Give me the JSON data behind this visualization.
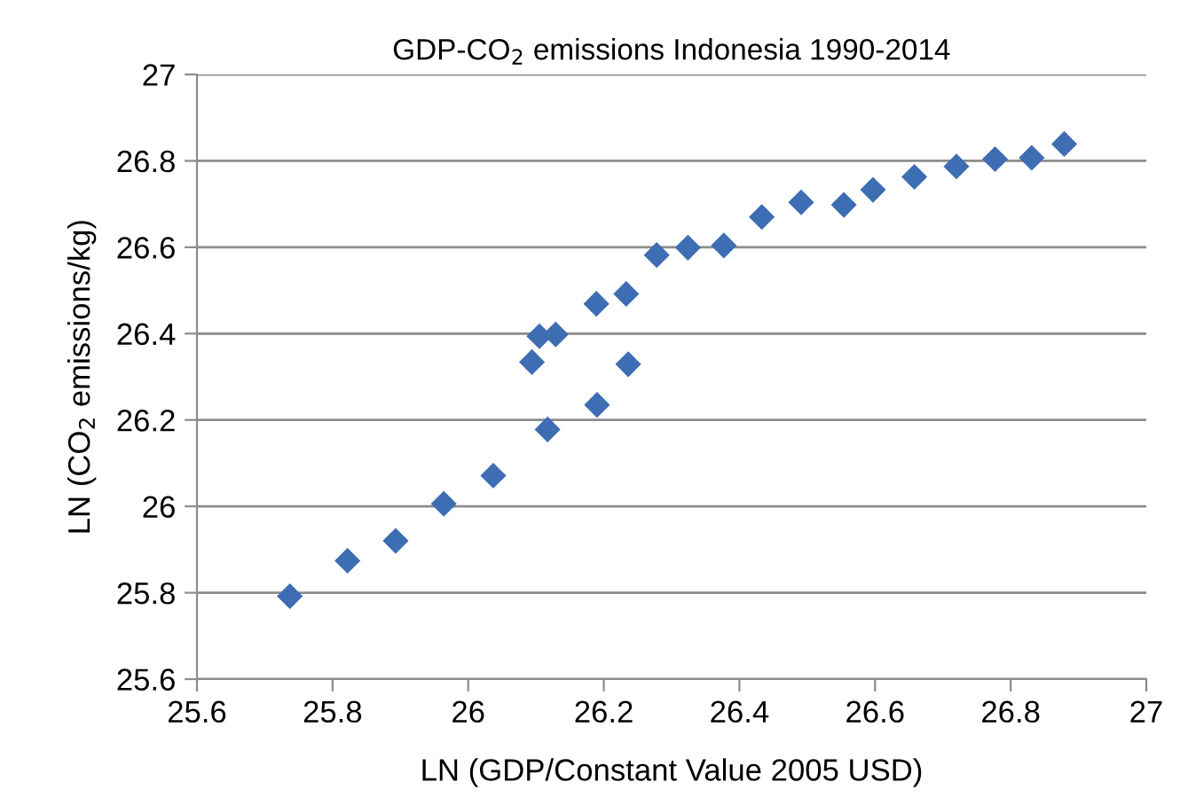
{
  "chart_data": {
    "type": "scatter",
    "title": "GDP-CO$_{2}$ emissions Indonesia 1990-2014",
    "xlabel": "LN (GDP/Constant Value 2005 USD)",
    "ylabel": "LN (CO$_{2}$ emissions/kg)",
    "x": [
      25.737,
      25.822,
      25.893,
      25.964,
      26.037,
      26.094,
      26.105,
      26.117,
      26.129,
      26.189,
      26.19,
      26.233,
      26.236,
      26.278,
      26.324,
      26.377,
      26.433,
      26.491,
      26.554,
      26.597,
      26.658,
      26.72,
      26.777,
      26.831,
      26.879
    ],
    "series": [
      {
        "color": "#3d6db3",
        "values": [
          25.792,
          25.874,
          25.92,
          26.006,
          26.071,
          26.334,
          26.394,
          26.178,
          26.398,
          26.469,
          26.235,
          26.492,
          26.329,
          26.582,
          26.599,
          26.604,
          26.67,
          26.704,
          26.698,
          26.733,
          26.763,
          26.787,
          26.804,
          26.807,
          26.839
        ]
      }
    ],
    "xlim": [
      25.6,
      27
    ],
    "xticks": [
      25.6,
      25.8,
      26,
      26.2,
      26.4,
      26.6,
      26.8,
      27
    ],
    "ylim": [
      25.6,
      27
    ],
    "yticks": [
      25.6,
      25.8,
      26,
      26.2,
      26.4,
      26.6,
      26.8,
      27
    ],
    "grid": "y",
    "marker": "diamond"
  }
}
